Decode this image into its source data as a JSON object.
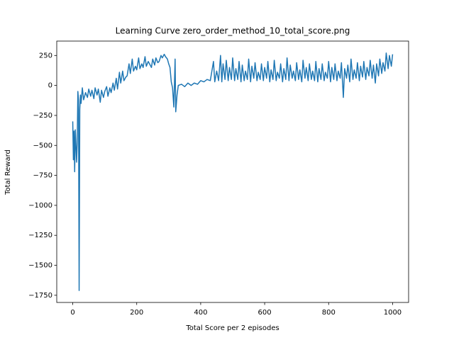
{
  "chart_data": {
    "type": "line",
    "title": "Learning Curve zero_order_method_10_total_score.png",
    "x_label": "Total Score per 2 episodes",
    "y_label": "Total Reward",
    "color": "#1f77b4",
    "xlim": [
      -50,
      1050
    ],
    "ylim": [
      -1810,
      370
    ],
    "xticks": [
      0,
      200,
      400,
      600,
      800,
      1000
    ],
    "yticks": [
      {
        "value": -1750,
        "label": "−1750"
      },
      {
        "value": -1500,
        "label": "−1500"
      },
      {
        "value": -1250,
        "label": "−1250"
      },
      {
        "value": -1000,
        "label": "−1000"
      },
      {
        "value": -750,
        "label": "−750"
      },
      {
        "value": -500,
        "label": "−500"
      },
      {
        "value": -250,
        "label": "−250"
      },
      0,
      250
    ],
    "x": [
      0,
      2,
      4,
      6,
      8,
      10,
      12,
      14,
      16,
      18,
      20,
      22,
      24,
      26,
      30,
      34,
      40,
      46,
      50,
      56,
      60,
      66,
      70,
      76,
      80,
      86,
      90,
      96,
      100,
      106,
      110,
      116,
      120,
      126,
      130,
      136,
      140,
      146,
      150,
      156,
      160,
      166,
      170,
      176,
      180,
      186,
      190,
      196,
      200,
      206,
      210,
      216,
      220,
      226,
      230,
      236,
      240,
      246,
      250,
      256,
      260,
      266,
      270,
      276,
      280,
      286,
      290,
      296,
      300,
      304,
      308,
      312,
      316,
      320,
      322,
      326,
      330,
      340,
      350,
      360,
      370,
      380,
      390,
      400,
      410,
      420,
      430,
      440,
      444,
      450,
      456,
      462,
      466,
      470,
      476,
      480,
      486,
      490,
      496,
      500,
      506,
      510,
      516,
      520,
      526,
      530,
      536,
      540,
      546,
      550,
      556,
      560,
      566,
      570,
      576,
      580,
      586,
      590,
      596,
      600,
      606,
      610,
      616,
      620,
      626,
      630,
      636,
      640,
      646,
      650,
      656,
      660,
      666,
      670,
      676,
      680,
      686,
      690,
      696,
      700,
      706,
      710,
      716,
      720,
      726,
      730,
      736,
      740,
      746,
      750,
      756,
      760,
      766,
      770,
      776,
      780,
      786,
      790,
      796,
      800,
      806,
      810,
      816,
      820,
      826,
      830,
      836,
      840,
      846,
      850,
      856,
      860,
      866,
      870,
      876,
      880,
      886,
      890,
      896,
      900,
      906,
      910,
      916,
      920,
      926,
      930,
      936,
      940,
      946,
      950,
      956,
      960,
      966,
      970,
      976,
      980,
      986,
      990,
      996,
      1000
    ],
    "values": [
      -300,
      -620,
      -380,
      -720,
      -370,
      -500,
      -640,
      -480,
      -50,
      -120,
      -1710,
      -200,
      -80,
      -150,
      -20,
      -120,
      -60,
      -100,
      -30,
      -90,
      -40,
      -110,
      -20,
      -80,
      -30,
      -140,
      -40,
      -100,
      -50,
      -10,
      -90,
      -20,
      -60,
      20,
      -40,
      60,
      -30,
      110,
      20,
      120,
      40,
      70,
      80,
      180,
      100,
      220,
      120,
      160,
      130,
      230,
      140,
      180,
      150,
      240,
      160,
      200,
      180,
      150,
      220,
      170,
      230,
      190,
      200,
      250,
      230,
      260,
      240,
      220,
      180,
      150,
      30,
      -20,
      -180,
      220,
      -220,
      -80,
      0,
      10,
      -10,
      20,
      0,
      20,
      10,
      40,
      30,
      50,
      40,
      200,
      30,
      120,
      40,
      250,
      30,
      180,
      50,
      210,
      40,
      150,
      50,
      230,
      40,
      140,
      50,
      200,
      30,
      170,
      40,
      120,
      50,
      220,
      30,
      160,
      60,
      190,
      40,
      110,
      50,
      180,
      40,
      150,
      60,
      200,
      30,
      130,
      50,
      210,
      40,
      110,
      60,
      180,
      30,
      140,
      50,
      230,
      40,
      170,
      60,
      120,
      40,
      190,
      50,
      130,
      30,
      210,
      60,
      150,
      40,
      180,
      50,
      120,
      40,
      200,
      30,
      140,
      50,
      180,
      40,
      110,
      60,
      200,
      30,
      150,
      50,
      180,
      40,
      120,
      60,
      190,
      -100,
      140,
      60,
      170,
      30,
      220,
      50,
      130,
      60,
      190,
      40,
      160,
      70,
      200,
      50,
      150,
      80,
      210,
      60,
      170,
      20,
      180,
      80,
      220,
      100,
      190,
      120,
      270,
      140,
      250,
      160,
      260
    ]
  }
}
